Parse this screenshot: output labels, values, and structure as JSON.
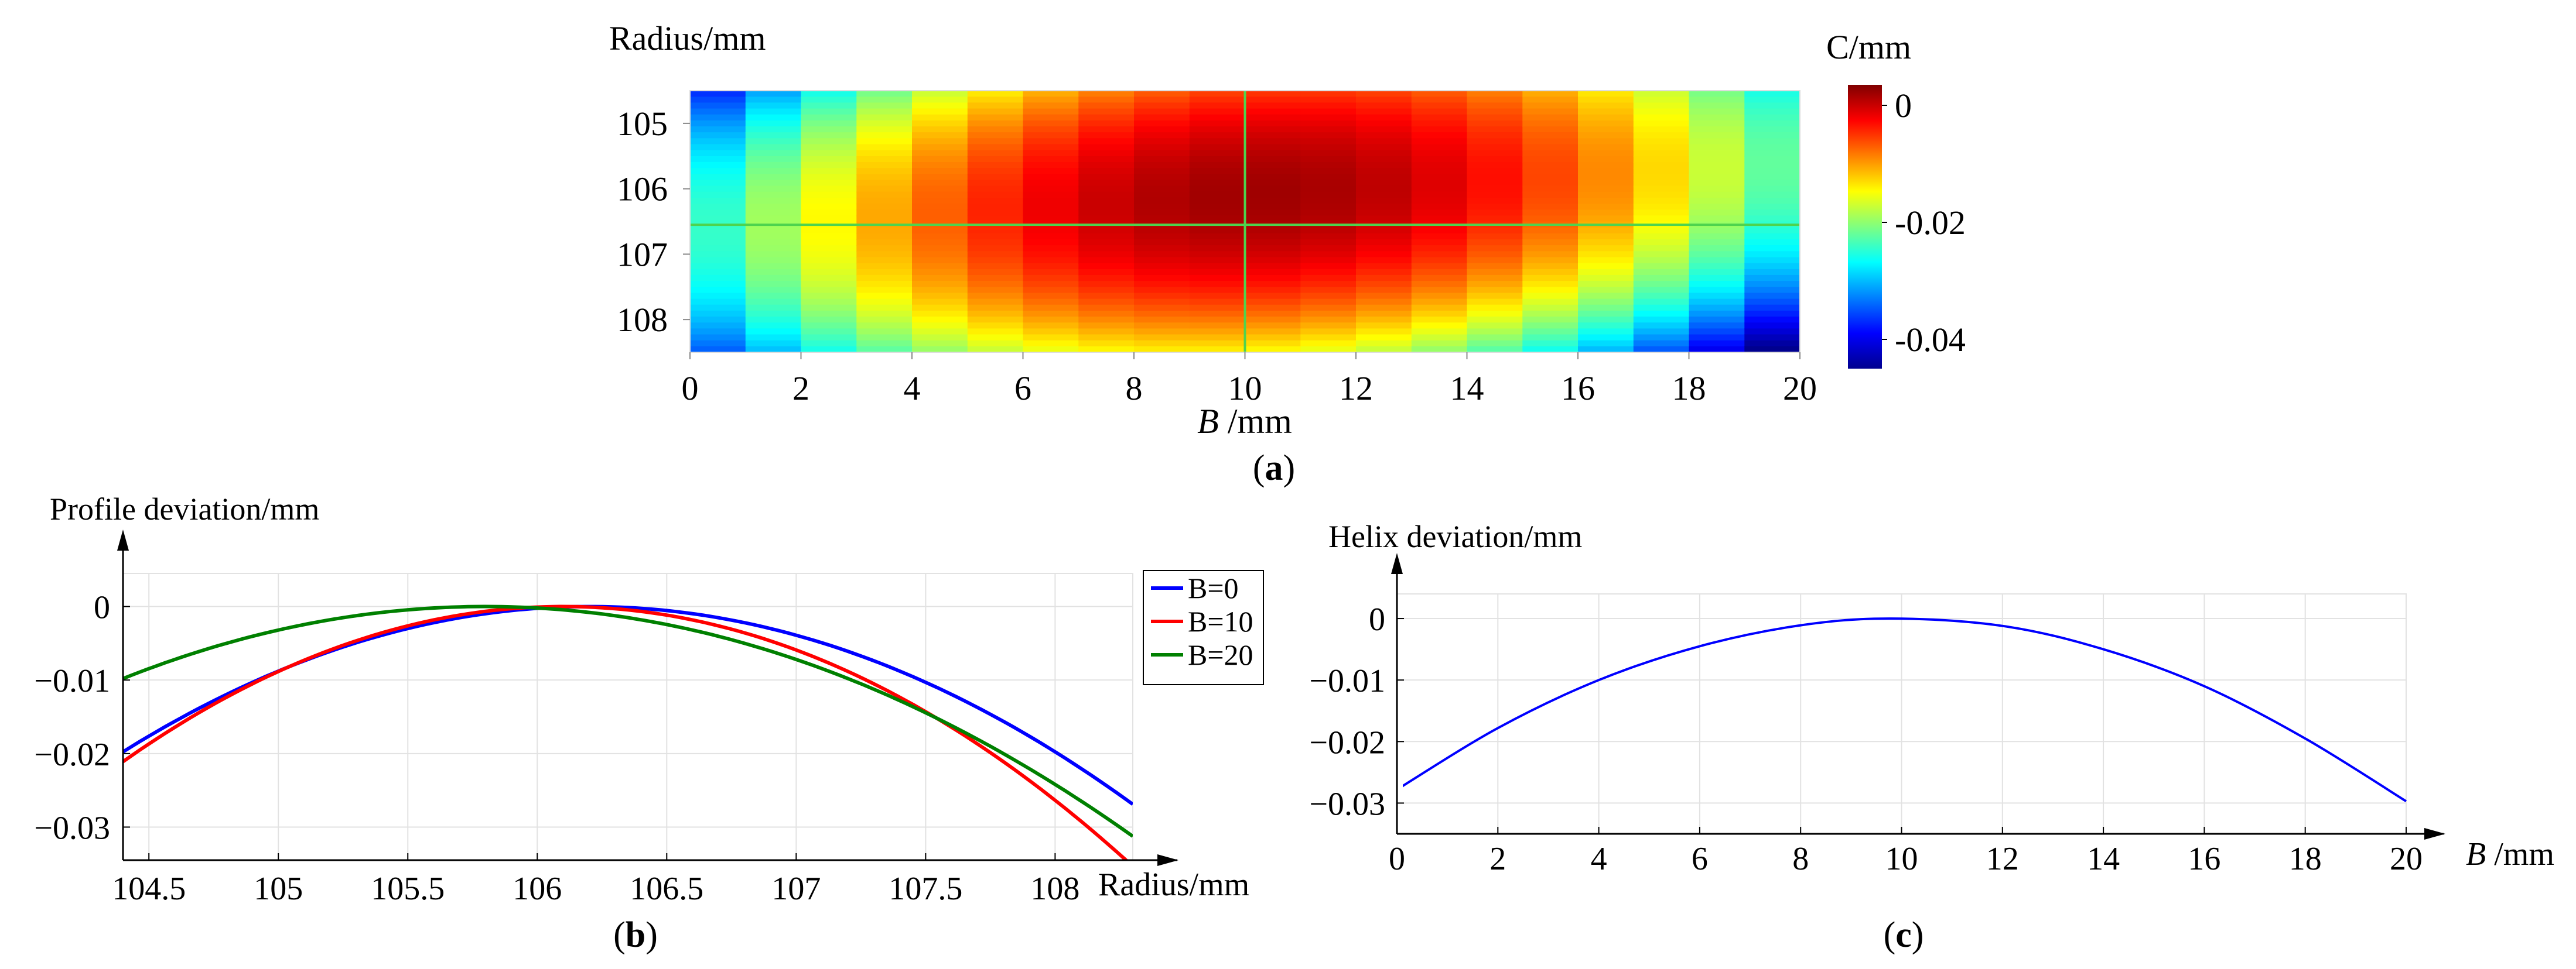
{
  "chart_data": [
    {
      "id": "a",
      "type": "heatmap",
      "panel_label": "a",
      "title": "",
      "xlabel_italic": "B",
      "xlabel_unit": " /mm",
      "ylabel": "Radius/mm",
      "colorbar_label": "C/mm",
      "x_range": [
        0,
        20
      ],
      "y_range": [
        104.5,
        108.5
      ],
      "y_inverted": true,
      "x_ticks": [
        0,
        2,
        4,
        6,
        8,
        10,
        12,
        14,
        16,
        18,
        20
      ],
      "y_ticks": [
        105,
        106,
        107,
        108
      ],
      "colorbar_range": [
        -0.045,
        0.0035
      ],
      "colorbar_ticks": [
        0,
        -0.02,
        -0.04
      ],
      "colormap": [
        "#00008f",
        "#0000ff",
        "#00ffff",
        "#ffff00",
        "#ff0000",
        "#800000"
      ],
      "crosshair": {
        "x": 10,
        "y": 106.55,
        "color": "#4ed34e"
      },
      "surface": {
        "peak_b": 10.2,
        "peak_radius": 106.1,
        "b_coef": 0.000287,
        "r_coef": 0.0029,
        "cross_coef": 0.0003
      },
      "cells": {
        "b_count": 20,
        "r_count": 44
      }
    },
    {
      "id": "b",
      "type": "line",
      "panel_label": "b",
      "ylabel": "Profile deviation/mm",
      "xlabel": "Radius/mm",
      "x_range": [
        104.4,
        108.3
      ],
      "y_range": [
        -0.0345,
        0.0045
      ],
      "x_ticks": [
        104.5,
        105,
        105.5,
        106,
        106.5,
        107,
        107.5,
        108
      ],
      "x_tick_labels": [
        "104.5",
        "105",
        "105.5",
        "106",
        "106.5",
        "107",
        "107.5",
        "108"
      ],
      "y_ticks": [
        0,
        -0.01,
        -0.02,
        -0.03
      ],
      "y_tick_labels": [
        "0",
        "−0.01",
        "−0.02",
        "−0.03"
      ],
      "grid": true,
      "legend_position": "top-right, outside",
      "series": [
        {
          "name": "B=0",
          "color": "#0000ff",
          "peak_x": 106.2,
          "coef": 0.0061,
          "x_start": 104.4,
          "x_end": 108.3
        },
        {
          "name": "B=10",
          "color": "#ff0000",
          "peak_x": 106.1,
          "coef": 0.0073,
          "x_start": 104.4,
          "x_end": 108.3
        },
        {
          "name": "B=20",
          "color": "#008000",
          "peak_x": 105.8,
          "coef": 0.005,
          "x_start": 104.4,
          "x_end": 108.3
        }
      ]
    },
    {
      "id": "c",
      "type": "line",
      "panel_label": "c",
      "ylabel": "Helix deviation/mm",
      "xlabel_italic": "B",
      "xlabel_unit": " /mm",
      "x_range": [
        0,
        20
      ],
      "y_range": [
        -0.035,
        0.004
      ],
      "x_ticks": [
        0,
        2,
        4,
        6,
        8,
        10,
        12,
        14,
        16,
        18,
        20
      ],
      "x_tick_labels": [
        "0",
        "2",
        "4",
        "6",
        "8",
        "10",
        "12",
        "14",
        "16",
        "18",
        "20"
      ],
      "y_ticks": [
        0,
        -0.01,
        -0.02,
        -0.03
      ],
      "y_tick_labels": [
        "0",
        "−0.01",
        "−0.02",
        "−0.03"
      ],
      "grid": true,
      "series": [
        {
          "name": "Helix deviation",
          "color": "#0000ff",
          "points": [
            [
              0,
              -0.0278
            ],
            [
              2,
              -0.0178
            ],
            [
              4,
              -0.01
            ],
            [
              6,
              -0.0045
            ],
            [
              8,
              -0.0011
            ],
            [
              9.8,
              0.0
            ],
            [
              12,
              -0.0012
            ],
            [
              14,
              -0.005
            ],
            [
              16,
              -0.011
            ],
            [
              18,
              -0.0195
            ],
            [
              20,
              -0.0297
            ]
          ]
        }
      ]
    }
  ]
}
